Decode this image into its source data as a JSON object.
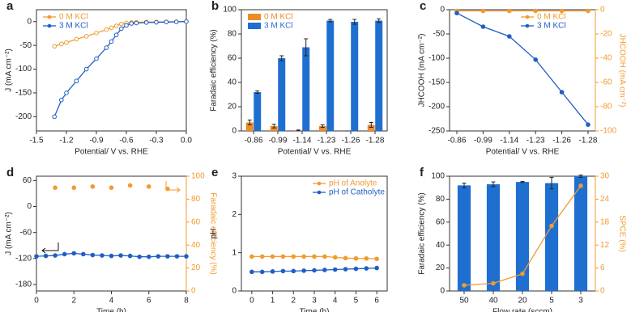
{
  "chart_data": [
    {
      "type": "line",
      "panel_label": "a",
      "xlabel": "Potential/ V vs. RHE",
      "ylabel": "J (mA cm⁻²)",
      "x": [
        -1.32,
        -1.25,
        -1.2,
        -1.1,
        -1.0,
        -0.9,
        -0.8,
        -0.75,
        -0.7,
        -0.65,
        -0.6,
        -0.55,
        -0.5,
        -0.4,
        -0.3,
        -0.2,
        -0.1,
        0
      ],
      "xlim": [
        -1.5,
        0
      ],
      "xticks": [
        -1.5,
        -1.2,
        -0.9,
        -0.6,
        -0.3,
        {
          "value": 0,
          "label": "0.0"
        }
      ],
      "ylim": [
        -230,
        25
      ],
      "yticks": [
        0,
        -50,
        -100,
        -150,
        -200
      ],
      "legend": "upper left",
      "series": [
        {
          "name": "0 M KCl",
          "color": "#f39a2e",
          "values": [
            -52,
            -47,
            -44,
            -37,
            -31,
            -24,
            -17,
            -13,
            -9,
            -5,
            -3,
            -2,
            -1.5,
            -1,
            -0.8,
            -0.5,
            -0.3,
            0
          ]
        },
        {
          "name": "3 M KCl",
          "color": "#1f5fc4",
          "values": [
            -200,
            -165,
            -150,
            -125,
            -100,
            -78,
            -55,
            -42,
            -28,
            -15,
            -8,
            -4,
            -3,
            -2,
            -1.5,
            -1,
            -0.5,
            0
          ]
        }
      ]
    },
    {
      "type": "bar",
      "panel_label": "b",
      "xlabel": "Potential/ V vs. RHE",
      "ylabel": "Faradaic efficiency (%)",
      "categories": [
        "-0.86",
        "-0.99",
        "-1.14",
        "-1.23",
        "-1.26",
        "-1.28"
      ],
      "ylim": [
        0,
        100
      ],
      "yticks": [
        0,
        20,
        40,
        60,
        80,
        100
      ],
      "legend": "upper left",
      "series": [
        {
          "name": "0 M KCl",
          "color": "#f08a24",
          "values": [
            7,
            4,
            0.5,
            4,
            0,
            5
          ],
          "errors": [
            2,
            1.5,
            0.3,
            1,
            0,
            2
          ]
        },
        {
          "name": "3 M KCl",
          "color": "#1f6fd1",
          "values": [
            32,
            60,
            69,
            91,
            90,
            91
          ],
          "errors": [
            1,
            2,
            7,
            1,
            2,
            1.5
          ]
        }
      ]
    },
    {
      "type": "line",
      "panel_label": "c",
      "xlabel": "Potential/ V vs. RHE",
      "ylabel": "JHCOOH (mA cm⁻²)",
      "y2label": "JHCOOH (mA cm⁻²)",
      "categories": [
        "-0.86",
        "-0.99",
        "-1.14",
        "-1.23",
        "-1.26",
        "-1.28"
      ],
      "ylim": [
        -250,
        0
      ],
      "yticks": [
        0,
        -50,
        -100,
        -150,
        -200,
        -250
      ],
      "y2lim": [
        -100,
        0
      ],
      "y2ticks": [
        0,
        -20,
        -40,
        -60,
        -80,
        -100
      ],
      "legend": "upper right",
      "series": [
        {
          "name": "0 M KCl",
          "color": "#f39a2e",
          "axis": "y2",
          "values": [
            -1,
            -1,
            -1,
            -1,
            -1,
            -1
          ]
        },
        {
          "name": "3 M KCl",
          "color": "#1f5fc4",
          "values": [
            -7,
            -35,
            -55,
            -103,
            -170,
            -237
          ]
        }
      ]
    },
    {
      "type": "line",
      "panel_label": "d",
      "xlabel": "Time (h)",
      "ylabel": "J (mA cm⁻²)",
      "y2label": "Faradaic efficiency (%)",
      "x": [
        0,
        0.5,
        1,
        1.5,
        2,
        2.5,
        3,
        3.5,
        4,
        4.5,
        5,
        5.5,
        6,
        6.5,
        7,
        7.5,
        8
      ],
      "xlim": [
        0,
        8
      ],
      "xticks": [
        0,
        2,
        4,
        6,
        8
      ],
      "ylim": [
        -195,
        70
      ],
      "yticks": [
        60,
        0,
        -60,
        -120,
        -180
      ],
      "y2lim": [
        0,
        100
      ],
      "y2ticks": [
        0,
        20,
        40,
        60,
        80,
        100
      ],
      "series": [
        {
          "color": "#1f5fc4",
          "values": [
            -115,
            -114,
            -113,
            -110,
            -108,
            -110,
            -112,
            -113,
            -114,
            -113,
            -114,
            -116,
            -116,
            -115,
            -115,
            -115,
            -115
          ]
        },
        {
          "color": "#f39a2e",
          "axis": "y2",
          "style": "scatter",
          "values": [
            null,
            null,
            90,
            null,
            90,
            null,
            91,
            null,
            90,
            null,
            92,
            null,
            91,
            null,
            89,
            null,
            null
          ]
        }
      ]
    },
    {
      "type": "line",
      "panel_label": "e",
      "xlabel": "Time (h)",
      "ylabel": "pH",
      "x": [
        0,
        0.5,
        1,
        1.5,
        2,
        2.5,
        3,
        3.5,
        4,
        4.5,
        5,
        5.5,
        6
      ],
      "xlim": [
        -0.5,
        6.5
      ],
      "xticks": [
        0,
        1,
        2,
        3,
        4,
        5,
        6
      ],
      "ylim": [
        0,
        3
      ],
      "yticks": [
        0,
        1,
        2,
        3
      ],
      "legend": "upper right",
      "series": [
        {
          "name": "pH of Anolyte",
          "color": "#f39a2e",
          "values": [
            0.9,
            0.9,
            0.9,
            0.9,
            0.9,
            0.9,
            0.9,
            0.9,
            0.88,
            0.86,
            0.85,
            0.85,
            0.84
          ]
        },
        {
          "name": "pH of Catholyte",
          "color": "#1f5fc4",
          "values": [
            0.5,
            0.5,
            0.51,
            0.52,
            0.52,
            0.53,
            0.54,
            0.55,
            0.56,
            0.57,
            0.58,
            0.59,
            0.6
          ]
        }
      ]
    },
    {
      "type": "bar",
      "panel_label": "f",
      "xlabel": "Flow rate (sccm)",
      "ylabel": "Faradaic efficiency (%)",
      "y2label": "SPCE (%)",
      "categories": [
        "50",
        "40",
        "20",
        "5",
        "3"
      ],
      "ylim": [
        0,
        100
      ],
      "yticks": [
        0,
        20,
        40,
        60,
        80,
        100
      ],
      "y2lim": [
        0,
        30
      ],
      "y2ticks": [
        0,
        6,
        12,
        18,
        24,
        30
      ],
      "series": [
        {
          "color": "#1f6fd1",
          "values": [
            92,
            93,
            95,
            94,
            100
          ],
          "errors": [
            2,
            2,
            0.5,
            5,
            1
          ]
        },
        {
          "color": "#f39a2e",
          "axis": "y2",
          "style": "line",
          "values": [
            1.5,
            2,
            4.5,
            17,
            27.5
          ]
        }
      ]
    }
  ]
}
